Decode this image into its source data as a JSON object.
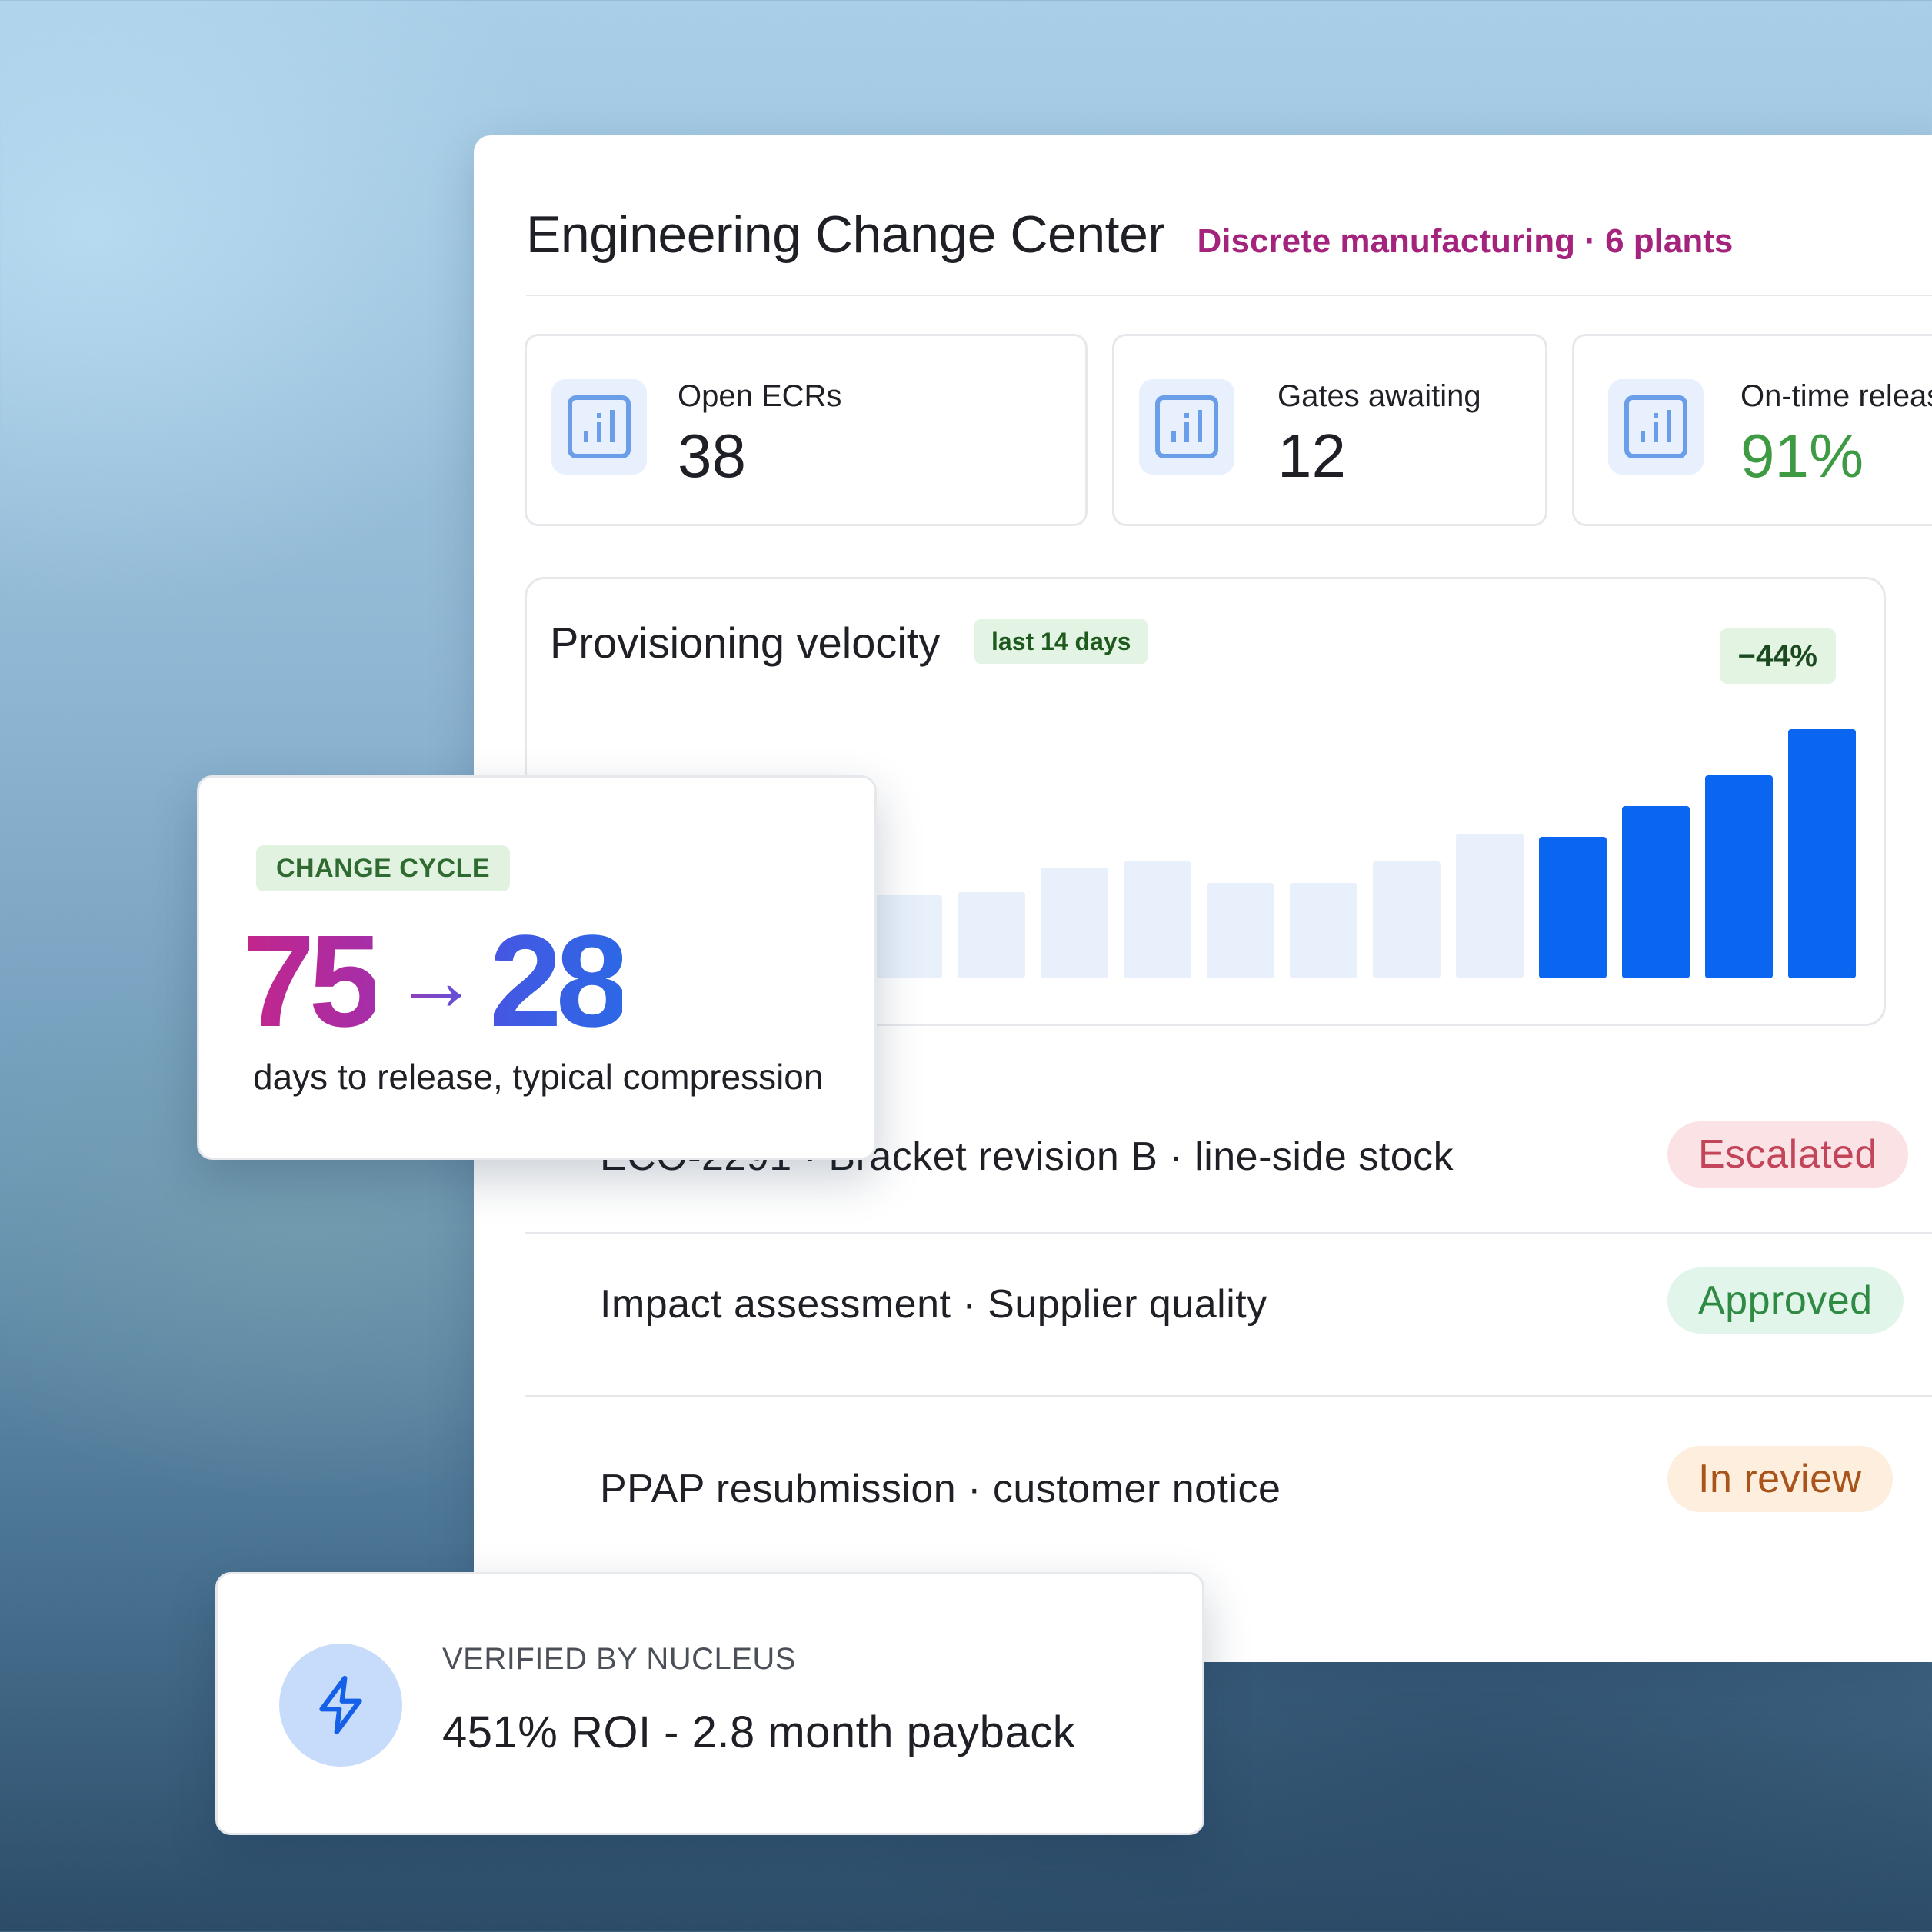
{
  "header": {
    "title": "Engineering Change Center",
    "subtitle": "Discrete manufacturing · 6 plants"
  },
  "kpis": [
    {
      "label": "Open ECRs",
      "value": "38",
      "icon": "bar-chart-icon",
      "value_color": "#1e2026"
    },
    {
      "label": "Gates awaiting",
      "value": "12",
      "icon": "bar-chart-icon",
      "value_color": "#1e2026"
    },
    {
      "label": "On-time releas",
      "value": "91%",
      "icon": "bar-chart-icon",
      "value_color": "#3f9a44"
    }
  ],
  "velocity": {
    "title": "Provisioning velocity",
    "range_badge": "last 14 days",
    "delta_badge": "−44%"
  },
  "chart_data": {
    "type": "bar",
    "title": "Provisioning velocity",
    "values": [
      27,
      27,
      27,
      27,
      27,
      28,
      36,
      38,
      31,
      31,
      38,
      47,
      46,
      56,
      66,
      81
    ],
    "highlighted_from_index": 12,
    "colors": {
      "muted": "#e8f0fc",
      "highlight": "#0a66f0"
    },
    "ylim": [
      0,
      100
    ],
    "grid": false,
    "legend": "none"
  },
  "changes": [
    {
      "title": "ECO-2291 · Bracket revision B · line-side stock",
      "status": "Escalated",
      "status_bg": "#fbe3e5",
      "status_fg": "#c2455a"
    },
    {
      "title": "Impact assessment · Supplier quality",
      "status": "Approved",
      "status_bg": "#e2f5ea",
      "status_fg": "#2f8a43"
    },
    {
      "title": "PPAP resubmission · customer notice",
      "status": "In review",
      "status_bg": "#fdeedd",
      "status_fg": "#a8541a"
    }
  ],
  "cycle": {
    "tag": "CHANGE CYCLE",
    "from": "75",
    "arrow": "→",
    "to": "28",
    "caption": "days to release, typical compression"
  },
  "roi": {
    "icon": "lightning-icon",
    "label": "VERIFIED BY NUCLEUS",
    "value": "451% ROI - 2.8 month payback"
  }
}
